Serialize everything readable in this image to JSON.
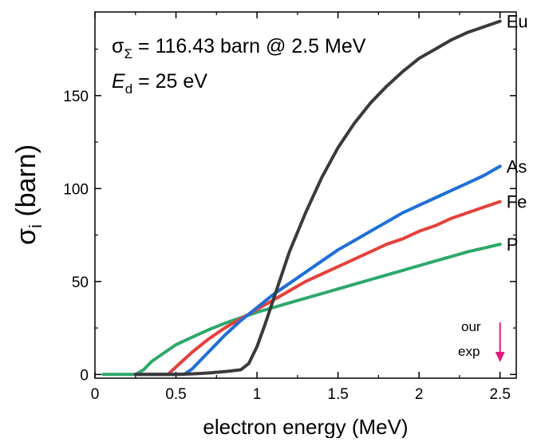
{
  "chart_data": {
    "type": "line",
    "xlabel": "electron energy (MeV)",
    "ylabel_main": "σ",
    "ylabel_sub": "i",
    "ylabel_rest": " (barn)",
    "xlim": [
      0,
      2.6
    ],
    "ylim": [
      -2,
      195
    ],
    "x_ticks": [
      0,
      0.5,
      1,
      1.5,
      2,
      2.5
    ],
    "x_tick_labels": [
      "0",
      "0.5",
      "1",
      "1.5",
      "2",
      "2.5"
    ],
    "y_ticks": [
      0,
      50,
      100,
      150
    ],
    "y_tick_labels": [
      "0",
      "50",
      "100",
      "150"
    ],
    "grid": false,
    "annotations": {
      "line1": {
        "sigma": "σ",
        "sub": "Σ",
        "text": " = 116.43 barn @ 2.5 MeV"
      },
      "line2": {
        "var": "E",
        "sub": "d",
        "text": " = 25 eV"
      },
      "exp_note": {
        "line1": "our",
        "line2": "exp",
        "x": 2.5,
        "arrow_color": "#e6197a"
      }
    },
    "series": [
      {
        "name": "Eu",
        "color": "#3a3a3a",
        "x": [
          0.25,
          0.3,
          0.4,
          0.5,
          0.6,
          0.7,
          0.8,
          0.9,
          0.95,
          1.0,
          1.05,
          1.1,
          1.15,
          1.2,
          1.3,
          1.4,
          1.5,
          1.6,
          1.7,
          1.8,
          1.9,
          2.0,
          2.1,
          2.2,
          2.3,
          2.4,
          2.5
        ],
        "y": [
          0,
          0,
          0,
          0,
          0.3,
          0.8,
          1.5,
          2.5,
          6,
          15,
          27,
          40,
          53,
          66,
          87,
          106,
          122,
          135,
          146,
          155,
          163,
          170,
          175,
          180,
          184,
          187,
          190
        ]
      },
      {
        "name": "As",
        "color": "#1f6fd6",
        "x": [
          0.25,
          0.5,
          0.55,
          0.6,
          0.7,
          0.8,
          0.9,
          1.0,
          1.1,
          1.2,
          1.3,
          1.4,
          1.5,
          1.6,
          1.7,
          1.8,
          1.9,
          2.0,
          2.1,
          2.2,
          2.3,
          2.4,
          2.5
        ],
        "y": [
          0,
          0,
          0,
          3,
          12,
          21,
          29,
          36,
          43,
          49,
          55,
          61,
          67,
          72,
          77,
          82,
          87,
          91,
          95,
          99,
          103,
          107,
          112
        ]
      },
      {
        "name": "Fe",
        "color": "#e5413c",
        "x": [
          0.25,
          0.45,
          0.5,
          0.6,
          0.7,
          0.8,
          0.9,
          1.0,
          1.1,
          1.2,
          1.3,
          1.4,
          1.5,
          1.6,
          1.7,
          1.8,
          1.9,
          2.0,
          2.1,
          2.2,
          2.3,
          2.4,
          2.5
        ],
        "y": [
          0,
          0,
          4,
          12,
          19,
          25,
          30,
          35,
          40,
          45,
          50,
          54,
          58,
          62,
          66,
          70,
          73,
          77,
          80,
          84,
          87,
          90,
          93
        ]
      },
      {
        "name": "P",
        "color": "#2ea86a",
        "x": [
          0.05,
          0.25,
          0.3,
          0.35,
          0.4,
          0.5,
          0.6,
          0.7,
          0.8,
          0.9,
          1.0,
          1.1,
          1.2,
          1.3,
          1.4,
          1.5,
          1.6,
          1.7,
          1.8,
          1.9,
          2.0,
          2.1,
          2.2,
          2.3,
          2.4,
          2.5
        ],
        "y": [
          0,
          0,
          2.5,
          7,
          10,
          16,
          20,
          24,
          27.5,
          30.5,
          33.5,
          36,
          38.5,
          41,
          43.5,
          46,
          48.5,
          51,
          53.5,
          56,
          58.5,
          61,
          63.5,
          66,
          68,
          70
        ]
      }
    ]
  }
}
